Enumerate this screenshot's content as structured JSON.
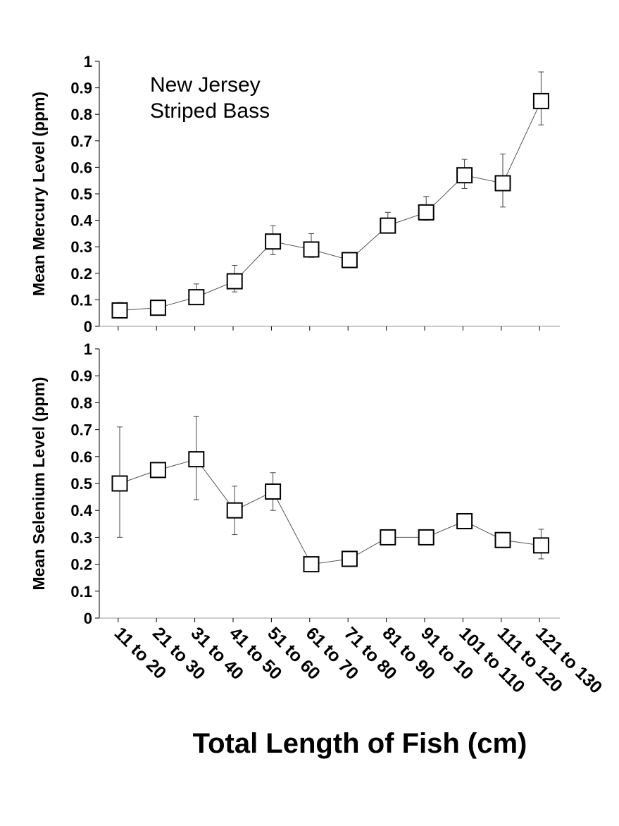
{
  "chart_data": [
    {
      "type": "line",
      "annotation_lines": [
        "New Jersey",
        "Striped Bass"
      ],
      "ylabel": "Mean Mercury Level (ppm)",
      "ylim": [
        0,
        1
      ],
      "yticks": [
        "0",
        "0.1",
        "0.2",
        "0.3",
        "0.4",
        "0.5",
        "0.6",
        "0.7",
        "0.8",
        "0.9",
        "1"
      ],
      "categories": [
        "11 to 20",
        "21 to 30",
        "31 to 40",
        "41 to 50",
        "51 to 60",
        "61 to 70",
        "71 to 80",
        "81 to 90",
        "91 to 10",
        "101 to 110",
        "111 to 120",
        "121 to 130"
      ],
      "values": [
        0.06,
        0.07,
        0.11,
        0.17,
        0.32,
        0.29,
        0.25,
        0.38,
        0.43,
        0.57,
        0.54,
        0.85
      ],
      "error_low": [
        0.04,
        0.06,
        0.1,
        0.13,
        0.27,
        0.26,
        0.25,
        0.38,
        0.4,
        0.52,
        0.45,
        0.76
      ],
      "error_high": [
        0.09,
        0.08,
        0.16,
        0.23,
        0.38,
        0.35,
        0.27,
        0.43,
        0.49,
        0.63,
        0.65,
        0.96
      ],
      "marker": "open-square"
    },
    {
      "type": "line",
      "ylabel": "Mean Selenium Level (ppm)",
      "ylim": [
        0,
        1
      ],
      "yticks": [
        "0",
        "0.1",
        "0.2",
        "0.3",
        "0.4",
        "0.5",
        "0.6",
        "0.7",
        "0.8",
        "0.9",
        "1"
      ],
      "categories": [
        "11 to 20",
        "21 to 30",
        "31 to 40",
        "41 to 50",
        "51 to 60",
        "61 to 70",
        "71 to 80",
        "81 to 90",
        "91 to 10",
        "101 to 110",
        "111 to 120",
        "121 to 130"
      ],
      "values": [
        0.5,
        0.55,
        0.59,
        0.4,
        0.47,
        0.2,
        0.22,
        0.3,
        0.3,
        0.36,
        0.29,
        0.27
      ],
      "error_low": [
        0.3,
        0.54,
        0.44,
        0.31,
        0.4,
        0.19,
        0.22,
        0.29,
        0.3,
        0.34,
        0.27,
        0.22
      ],
      "error_high": [
        0.71,
        0.56,
        0.75,
        0.49,
        0.54,
        0.21,
        0.23,
        0.31,
        0.31,
        0.37,
        0.3,
        0.33
      ],
      "marker": "open-square"
    }
  ],
  "xlabel": "Total Length of Fish (cm)"
}
